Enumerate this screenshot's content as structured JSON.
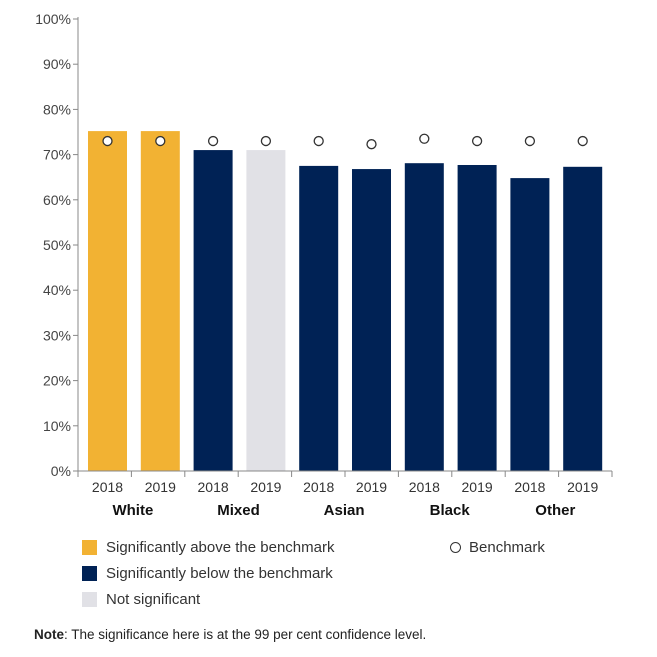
{
  "chart_data": {
    "type": "bar",
    "groups": [
      "White",
      "Mixed",
      "Asian",
      "Black",
      "Other"
    ],
    "categories": [
      "2018",
      "2019",
      "2018",
      "2019",
      "2018",
      "2019",
      "2018",
      "2019",
      "2018",
      "2019"
    ],
    "values": [
      75.2,
      75.2,
      71.0,
      71.0,
      67.5,
      66.8,
      68.1,
      67.7,
      64.8,
      67.3
    ],
    "significance": [
      "above",
      "above",
      "below",
      "not",
      "below",
      "below",
      "below",
      "below",
      "below",
      "below"
    ],
    "benchmark": [
      73.0,
      73.0,
      73.0,
      73.0,
      73.0,
      72.3,
      73.5,
      73.0,
      73.0,
      73.0
    ],
    "ylim": [
      0,
      100
    ],
    "yticks": [
      "0%",
      "10%",
      "20%",
      "30%",
      "40%",
      "50%",
      "60%",
      "70%",
      "80%",
      "90%",
      "100%"
    ],
    "colors": {
      "above": "#f2b233",
      "below": "#002255",
      "not": "#e1e1e6"
    },
    "legend": {
      "above": "Significantly above the benchmark",
      "below": "Significantly below the benchmark",
      "not": "Not significant",
      "benchmark": "Benchmark"
    },
    "grid": false
  },
  "note": {
    "label": "Note",
    "text": ": The significance here is at the 99 per cent confidence level."
  }
}
